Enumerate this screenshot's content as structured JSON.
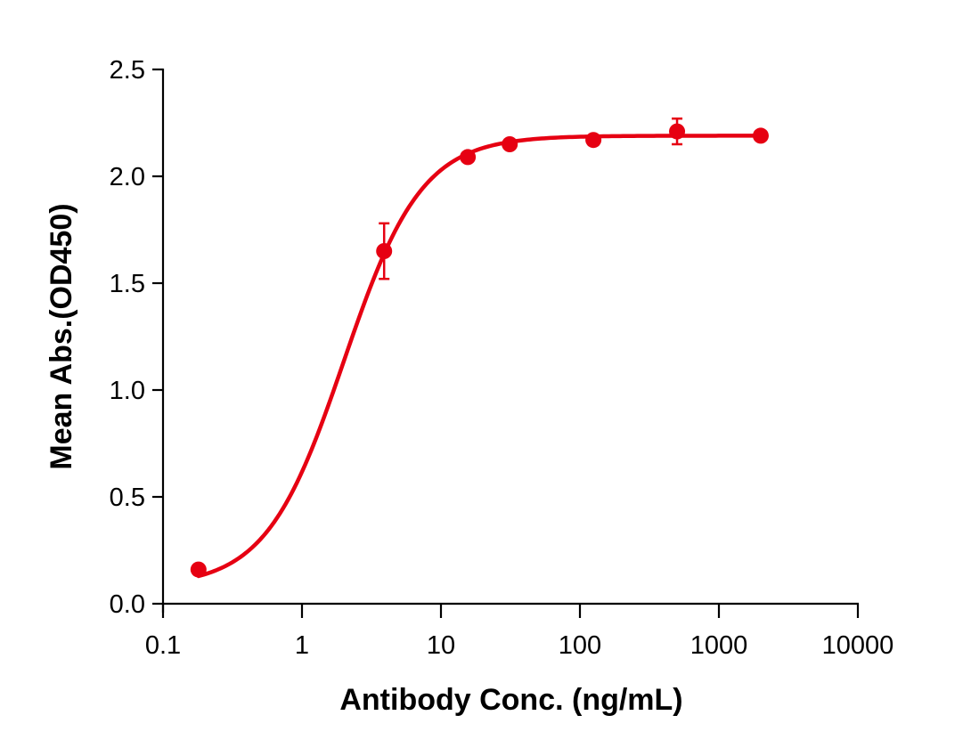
{
  "chart_data": {
    "type": "scatter",
    "title": "",
    "xlabel": "Antibody Conc. (ng/mL)",
    "ylabel": "Mean Abs.(OD450)",
    "xscale": "log",
    "xlim": [
      0.1,
      10000
    ],
    "ylim": [
      0.0,
      2.5
    ],
    "x_ticks": [
      "0.1",
      "1",
      "10",
      "100",
      "1000",
      "10000"
    ],
    "y_ticks": [
      "0.0",
      "0.5",
      "1.0",
      "1.5",
      "2.0",
      "2.5"
    ],
    "grid": false,
    "legend": null,
    "color": "#e60012",
    "series": [
      {
        "name": "Mean Abs.",
        "points": [
          {
            "x": 0.18,
            "y": 0.16,
            "err": 0.0
          },
          {
            "x": 3.9,
            "y": 1.65,
            "err": 0.13
          },
          {
            "x": 15.6,
            "y": 2.09,
            "err": 0.0
          },
          {
            "x": 31.25,
            "y": 2.15,
            "err": 0.0
          },
          {
            "x": 125,
            "y": 2.17,
            "err": 0.0
          },
          {
            "x": 500,
            "y": 2.21,
            "err": 0.06
          },
          {
            "x": 2000,
            "y": 2.19,
            "err": 0.0
          }
        ],
        "fit": {
          "model": "4PL",
          "bottom": 0.08,
          "top": 2.19,
          "ec50": 2.0,
          "hill": 1.55
        }
      }
    ]
  }
}
